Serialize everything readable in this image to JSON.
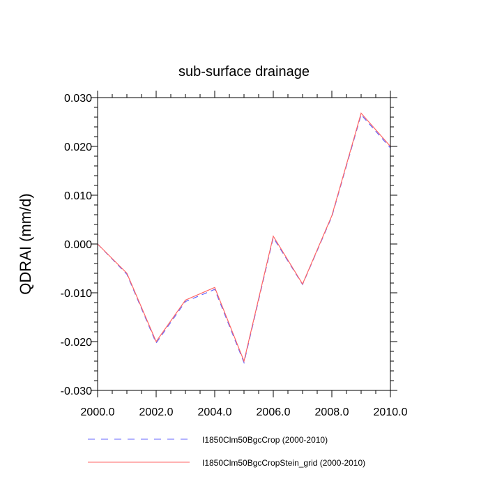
{
  "chart_data": {
    "type": "line",
    "title": "sub-surface drainage",
    "ylabel": "QDRAI  (mm/d)",
    "xlabel": "",
    "xlim": [
      2000,
      2010
    ],
    "ylim": [
      -0.03,
      0.03
    ],
    "x_ticks": [
      "2000.0",
      "2002.0",
      "2004.0",
      "2006.0",
      "2008.0",
      "2010.0"
    ],
    "y_ticks": [
      "-0.030",
      "-0.020",
      "-0.010",
      "0.000",
      "0.010",
      "0.020",
      "0.030"
    ],
    "grid": false,
    "legend_position": "bottom",
    "x": [
      2000,
      2001,
      2002,
      2003,
      2004,
      2005,
      2006,
      2007,
      2008,
      2009,
      2010
    ],
    "series": [
      {
        "name": "I1850Clm50BgcCrop (2000-2010)",
        "color": "#6666ff",
        "style": "dashed",
        "values": [
          0.0,
          -0.0062,
          -0.0203,
          -0.0118,
          -0.0093,
          -0.0243,
          0.0013,
          -0.0083,
          0.0056,
          0.0265,
          0.0197
        ]
      },
      {
        "name": "I1850Clm50BgcCropStein_grid (2000-2010)",
        "color": "#ff6666",
        "style": "solid",
        "values": [
          0.0,
          -0.006,
          -0.02,
          -0.0115,
          -0.0089,
          -0.024,
          0.0016,
          -0.0082,
          0.0058,
          0.0268,
          0.02
        ]
      }
    ]
  }
}
